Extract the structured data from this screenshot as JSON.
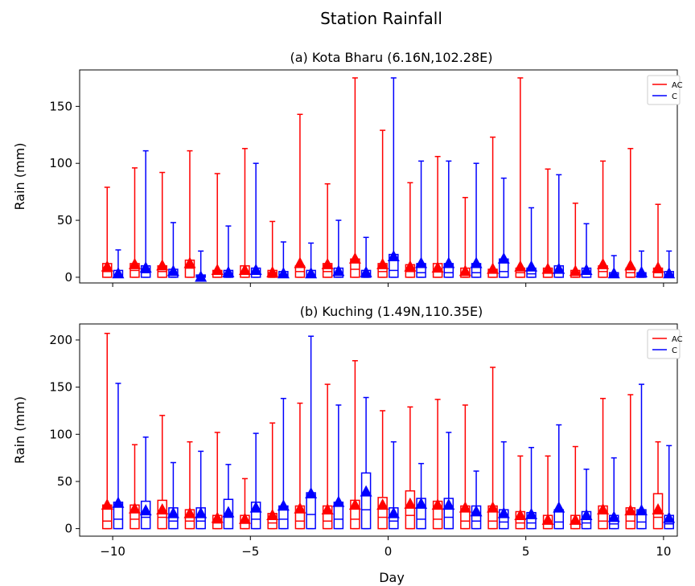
{
  "chart_data": {
    "type": "box",
    "title": "Station Rainfall",
    "xlabel": "Day",
    "x_ticks": [
      -10,
      -5,
      0,
      5,
      10
    ],
    "xlim": [
      -11.2,
      10.5
    ],
    "colors": {
      "AC": "#ff0000",
      "C": "#0000ff"
    },
    "panels": [
      {
        "subtitle": "(a) Kota Bharu (6.16N,102.28E)",
        "ylabel": "Rain (mm)",
        "ylim": [
          -5,
          182
        ],
        "y_ticks": [
          0,
          50,
          100,
          150
        ],
        "legend": [
          "AC",
          "C"
        ],
        "legend_position": "top-right",
        "series": [
          {
            "name": "AC",
            "x": [
              -10.2,
              -9.2,
              -8.2,
              -7.2,
              -6.2,
              -5.2,
              -4.2,
              -3.2,
              -2.2,
              -1.2,
              -0.2,
              0.8,
              1.8,
              2.8,
              3.8,
              4.8,
              5.8,
              6.8,
              7.8,
              8.8,
              9.8
            ],
            "whisker_high": [
              79,
              96,
              92,
              111,
              91,
              113,
              49,
              143,
              82,
              175,
              129,
              83,
              106,
              70,
              123,
              175,
              95,
              65,
              102,
              113,
              64
            ],
            "q3": [
              12,
              12,
              10,
              15,
              6,
              10,
              6,
              10,
              12,
              16,
              12,
              11,
              12,
              8,
              7,
              8,
              8,
              6,
              10,
              8,
              8
            ],
            "median": [
              5,
              6,
              5,
              8,
              5,
              5,
              4,
              5,
              5,
              7,
              5,
              5,
              5,
              4,
              4,
              4,
              4,
              4,
              5,
              4,
              4
            ],
            "q1": [
              0,
              0,
              0,
              0,
              0,
              0,
              0,
              0,
              0,
              0,
              0,
              0,
              0,
              0,
              0,
              0,
              0,
              0,
              0,
              0,
              0
            ],
            "whisker_low": [
              0,
              0,
              0,
              0,
              0,
              0,
              0,
              0,
              0,
              0,
              0,
              0,
              0,
              0,
              0,
              0,
              0,
              0,
              0,
              0,
              0
            ],
            "mean": [
              10,
              12,
              11,
              13,
              7,
              7,
              5,
              13,
              12,
              17,
              12,
              10,
              9,
              6,
              8,
              10,
              8,
              6,
              12,
              11,
              9
            ]
          },
          {
            "name": "C",
            "x": [
              -9.8,
              -8.8,
              -7.8,
              -6.8,
              -5.8,
              -4.8,
              -3.8,
              -2.8,
              -1.8,
              -0.8,
              0.2,
              1.2,
              2.2,
              3.2,
              4.2,
              5.2,
              6.2,
              7.2,
              8.2,
              9.2,
              10.2
            ],
            "whisker_high": [
              24,
              111,
              48,
              23,
              45,
              100,
              31,
              30,
              50,
              35,
              175,
              102,
              102,
              100,
              87,
              61,
              90,
              47,
              19,
              23,
              23
            ],
            "q3": [
              6,
              10,
              7,
              2,
              6,
              8,
              5,
              6,
              8,
              6,
              20,
              12,
              12,
              12,
              16,
              8,
              10,
              8,
              4,
              4,
              5
            ],
            "median": [
              2,
              4,
              3,
              1,
              2,
              3,
              2,
              2,
              3,
              2,
              6,
              4,
              4,
              4,
              5,
              3,
              4,
              3,
              1,
              2,
              2
            ],
            "q1": [
              0,
              0,
              0,
              0,
              0,
              0,
              0,
              0,
              0,
              0,
              0,
              0,
              0,
              0,
              0,
              0,
              0,
              0,
              0,
              0,
              0
            ],
            "whisker_low": [
              0,
              0,
              0,
              0,
              0,
              0,
              0,
              0,
              0,
              0,
              0,
              0,
              0,
              0,
              0,
              0,
              0,
              0,
              0,
              0,
              0
            ],
            "mean": [
              4,
              9,
              6,
              1,
              5,
              7,
              4,
              4,
              6,
              5,
              19,
              13,
              13,
              13,
              17,
              10,
              8,
              7,
              4,
              5,
              4
            ]
          }
        ]
      },
      {
        "subtitle": "(b) Kuching (1.49N,110.35E)",
        "ylabel": "Rain (mm)",
        "ylim": [
          -8,
          217
        ],
        "y_ticks": [
          0,
          50,
          100,
          150,
          200
        ],
        "legend": [
          "AC",
          "C"
        ],
        "legend_position": "top-right",
        "series": [
          {
            "name": "AC",
            "x": [
              -10.2,
              -9.2,
              -8.2,
              -7.2,
              -6.2,
              -5.2,
              -4.2,
              -3.2,
              -2.2,
              -1.2,
              -0.2,
              0.8,
              1.8,
              2.8,
              3.8,
              4.8,
              5.8,
              6.8,
              7.8,
              8.8,
              9.8
            ],
            "whisker_high": [
              207,
              89,
              120,
              92,
              102,
              53,
              112,
              133,
              153,
              178,
              125,
              129,
              137,
              131,
              171,
              77,
              77,
              87,
              138,
              142,
              92
            ],
            "q3": [
              25,
              25,
              30,
              20,
              14,
              14,
              16,
              24,
              24,
              30,
              33,
              40,
              29,
              24,
              24,
              18,
              14,
              14,
              24,
              22,
              37
            ],
            "median": [
              8,
              10,
              12,
              8,
              6,
              6,
              6,
              8,
              8,
              10,
              12,
              14,
              10,
              8,
              8,
              6,
              5,
              5,
              8,
              8,
              12
            ],
            "q1": [
              0,
              0,
              0,
              0,
              0,
              0,
              0,
              0,
              0,
              0,
              0,
              0,
              0,
              0,
              0,
              0,
              0,
              0,
              0,
              0,
              0
            ],
            "whisker_low": [
              0,
              0,
              0,
              0,
              0,
              0,
              0,
              0,
              0,
              0,
              0,
              0,
              0,
              0,
              0,
              0,
              0,
              0,
              0,
              0,
              0
            ],
            "mean": [
              26,
              22,
              21,
              17,
              12,
              11,
              15,
              22,
              21,
              26,
              26,
              27,
              26,
              23,
              23,
              15,
              10,
              10,
              21,
              20,
              21
            ]
          },
          {
            "name": "C",
            "x": [
              -9.8,
              -8.8,
              -7.8,
              -6.8,
              -5.8,
              -4.8,
              -3.8,
              -2.8,
              -1.8,
              -0.8,
              0.2,
              1.2,
              2.2,
              3.2,
              4.2,
              5.2,
              6.2,
              7.2,
              8.2,
              9.2,
              10.2
            ],
            "whisker_high": [
              154,
              97,
              70,
              82,
              68,
              101,
              138,
              204,
              131,
              139,
              92,
              69,
              102,
              61,
              92,
              86,
              110,
              63,
              75,
              153,
              88
            ],
            "q3": [
              28,
              29,
              22,
              22,
              31,
              28,
              24,
              38,
              28,
              59,
              22,
              32,
              32,
              24,
              20,
              17,
              20,
              18,
              14,
              20,
              14
            ],
            "median": [
              10,
              12,
              8,
              8,
              12,
              10,
              10,
              15,
              10,
              20,
              8,
              10,
              12,
              8,
              7,
              6,
              7,
              6,
              5,
              7,
              5
            ],
            "q1": [
              0,
              0,
              0,
              0,
              0,
              0,
              0,
              0,
              0,
              0,
              0,
              0,
              0,
              0,
              0,
              0,
              0,
              0,
              0,
              0,
              0
            ],
            "whisker_low": [
              0,
              0,
              0,
              0,
              0,
              0,
              0,
              0,
              0,
              0,
              0,
              0,
              0,
              0,
              0,
              0,
              0,
              0,
              0,
              0,
              0
            ],
            "mean": [
              28,
              20,
              17,
              17,
              18,
              23,
              25,
              38,
              29,
              40,
              17,
              27,
              26,
              19,
              17,
              16,
              23,
              15,
              13,
              20,
              12
            ]
          }
        ]
      }
    ]
  }
}
